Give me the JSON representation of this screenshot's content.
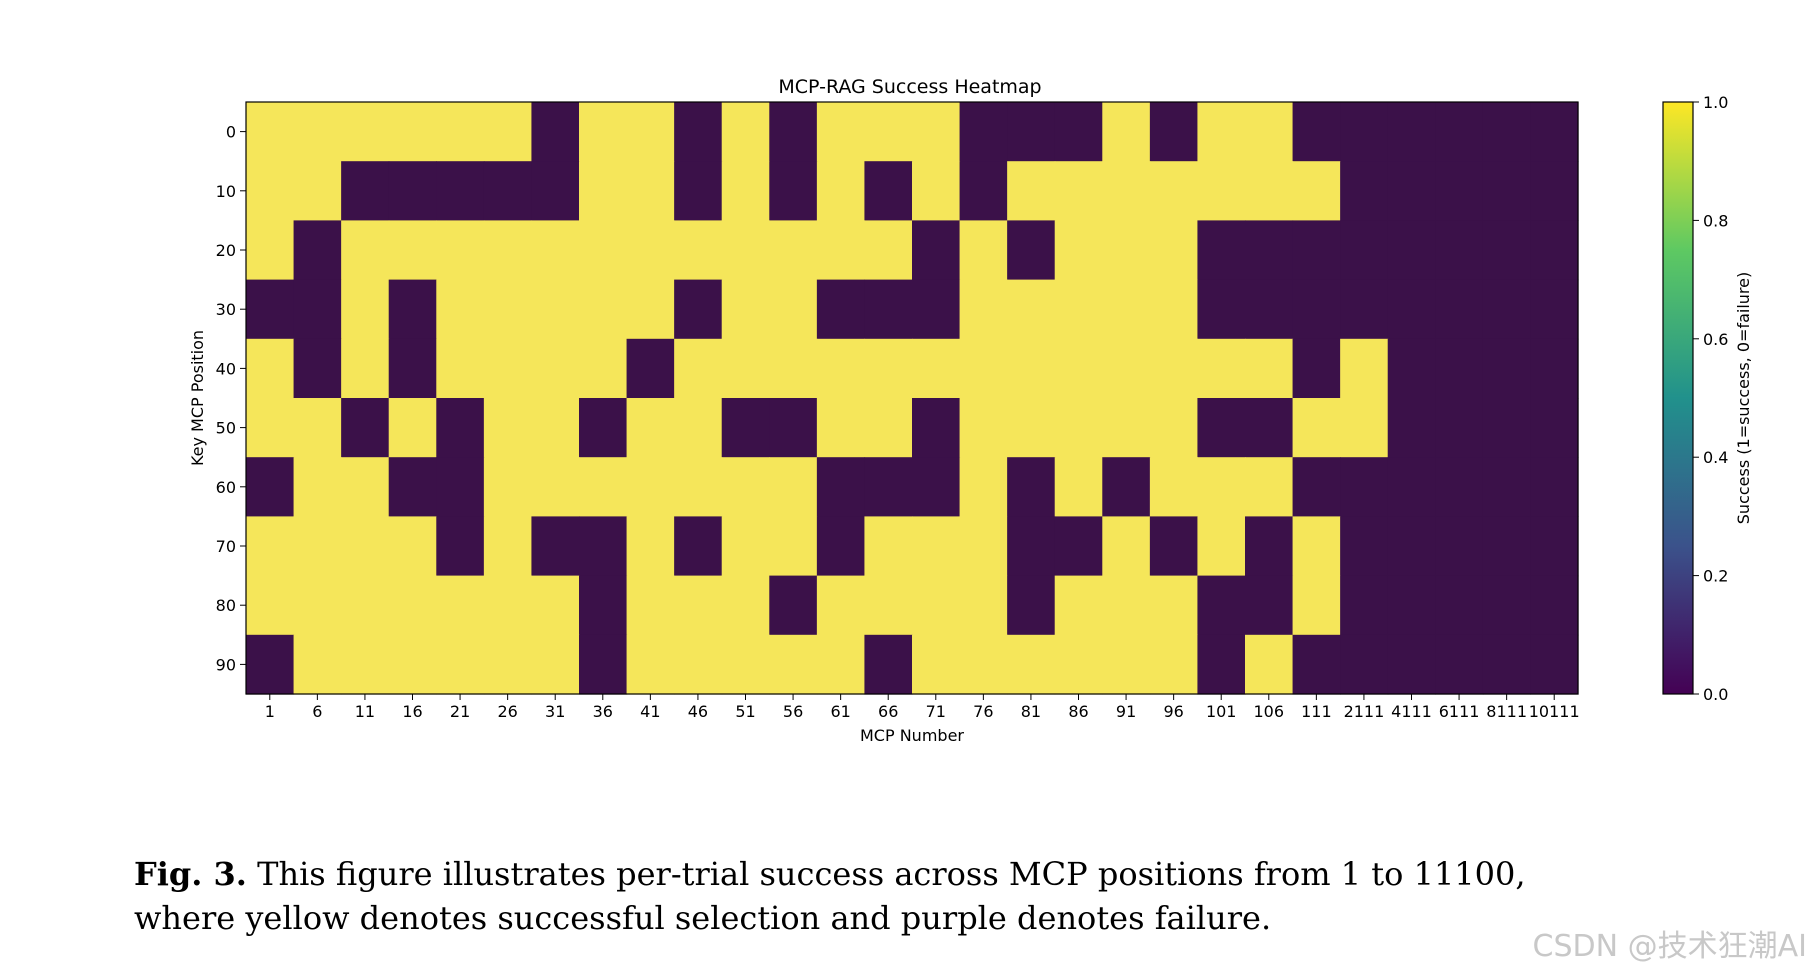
{
  "chart_data": {
    "type": "heatmap",
    "title": "MCP-RAG Success Heatmap",
    "xlabel": "MCP Number",
    "ylabel": "Key MCP Position",
    "x_tick_labels": [
      "1",
      "6",
      "11",
      "16",
      "21",
      "26",
      "31",
      "36",
      "41",
      "46",
      "51",
      "56",
      "61",
      "66",
      "71",
      "76",
      "81",
      "86",
      "91",
      "96",
      "101",
      "106",
      "111",
      "2111",
      "4111",
      "6111",
      "8111",
      "10111"
    ],
    "y_tick_labels": [
      "0",
      "10",
      "20",
      "30",
      "40",
      "50",
      "60",
      "70",
      "80",
      "90"
    ],
    "colorbar": {
      "label": "Success (1=success, 0=failure)",
      "ticks": [
        "0.0",
        "0.2",
        "0.4",
        "0.6",
        "0.8",
        "1.0"
      ],
      "range": [
        0,
        1
      ],
      "colormap": "viridis"
    },
    "colors": {
      "success": "#f5e65a",
      "failure": "#3b1149"
    },
    "grid": false,
    "values": [
      [
        1,
        1,
        1,
        1,
        1,
        1,
        0,
        1,
        1,
        0,
        1,
        0,
        1,
        1,
        1,
        0,
        0,
        0,
        1,
        0,
        1,
        1,
        0,
        0,
        0,
        0,
        0,
        0
      ],
      [
        1,
        1,
        0,
        0,
        0,
        0,
        0,
        1,
        1,
        0,
        1,
        0,
        1,
        0,
        1,
        0,
        1,
        1,
        1,
        1,
        1,
        1,
        1,
        0,
        0,
        0,
        0,
        0
      ],
      [
        1,
        0,
        1,
        1,
        1,
        1,
        1,
        1,
        1,
        1,
        1,
        1,
        1,
        1,
        0,
        1,
        0,
        1,
        1,
        1,
        0,
        0,
        0,
        0,
        0,
        0,
        0,
        0
      ],
      [
        0,
        0,
        1,
        0,
        1,
        1,
        1,
        1,
        1,
        0,
        1,
        1,
        0,
        0,
        0,
        1,
        1,
        1,
        1,
        1,
        0,
        0,
        0,
        0,
        0,
        0,
        0,
        0
      ],
      [
        1,
        0,
        1,
        0,
        1,
        1,
        1,
        1,
        0,
        1,
        1,
        1,
        1,
        1,
        1,
        1,
        1,
        1,
        1,
        1,
        1,
        1,
        0,
        1,
        0,
        0,
        0,
        0
      ],
      [
        1,
        1,
        0,
        1,
        0,
        1,
        1,
        0,
        1,
        1,
        0,
        0,
        1,
        1,
        0,
        1,
        1,
        1,
        1,
        1,
        0,
        0,
        1,
        1,
        0,
        0,
        0,
        0
      ],
      [
        0,
        1,
        1,
        0,
        0,
        1,
        1,
        1,
        1,
        1,
        1,
        1,
        0,
        0,
        0,
        1,
        0,
        1,
        0,
        1,
        1,
        1,
        0,
        0,
        0,
        0,
        0,
        0
      ],
      [
        1,
        1,
        1,
        1,
        0,
        1,
        0,
        0,
        1,
        0,
        1,
        1,
        0,
        1,
        1,
        1,
        0,
        0,
        1,
        0,
        1,
        0,
        1,
        0,
        0,
        0,
        0,
        0
      ],
      [
        1,
        1,
        1,
        1,
        1,
        1,
        1,
        0,
        1,
        1,
        1,
        0,
        1,
        1,
        1,
        1,
        0,
        1,
        1,
        1,
        0,
        0,
        1,
        0,
        0,
        0,
        0,
        0
      ],
      [
        0,
        1,
        1,
        1,
        1,
        1,
        1,
        0,
        1,
        1,
        1,
        1,
        1,
        0,
        1,
        1,
        1,
        1,
        1,
        1,
        0,
        1,
        0,
        0,
        0,
        0,
        0,
        0
      ]
    ]
  },
  "caption": {
    "label": "Fig. 3.",
    "line1": "This figure illustrates per-trial success across MCP positions from 1 to 11100,",
    "line2": "where yellow denotes successful selection and purple denotes failure."
  },
  "watermark": "CSDN @技术狂潮AI"
}
